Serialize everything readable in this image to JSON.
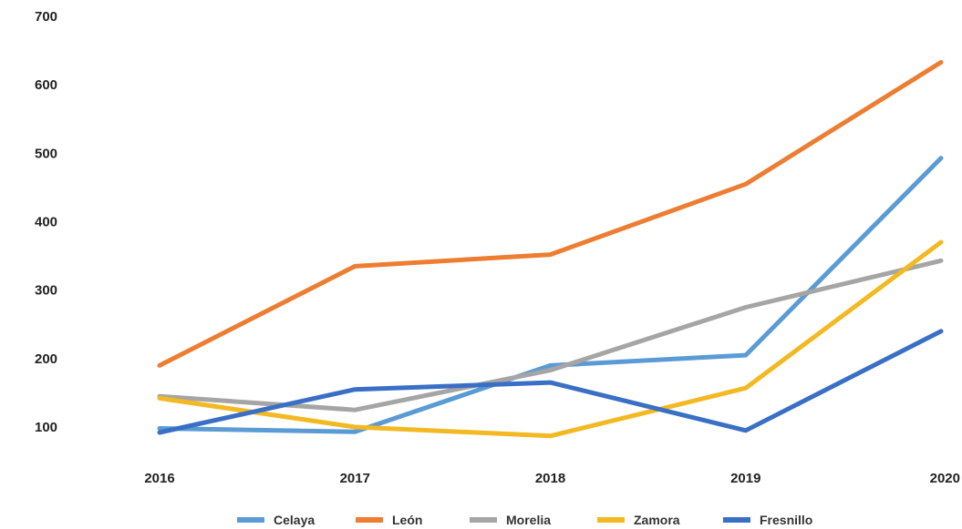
{
  "chart_data": {
    "type": "line",
    "title": "",
    "xlabel": "",
    "ylabel": "",
    "x": [
      "2016",
      "2017",
      "2018",
      "2019",
      "2020"
    ],
    "ylim": [
      0,
      700
    ],
    "yticks": [
      100,
      200,
      300,
      400,
      500,
      600,
      700
    ],
    "grid": false,
    "legend_position": "bottom",
    "series": [
      {
        "name": "Celaya",
        "color": "#5B9BD5",
        "values": [
          98,
          93,
          190,
          205,
          493
        ]
      },
      {
        "name": "León",
        "color": "#ED7D31",
        "values": [
          190,
          335,
          352,
          455,
          633
        ]
      },
      {
        "name": "Morelia",
        "color": "#A5A5A5",
        "values": [
          145,
          125,
          183,
          275,
          343
        ]
      },
      {
        "name": "Zamora",
        "color": "#F2B922",
        "values": [
          142,
          100,
          87,
          157,
          370
        ]
      },
      {
        "name": "Fresnillo",
        "color": "#3A6FC6",
        "values": [
          92,
          155,
          165,
          95,
          240
        ]
      }
    ]
  }
}
